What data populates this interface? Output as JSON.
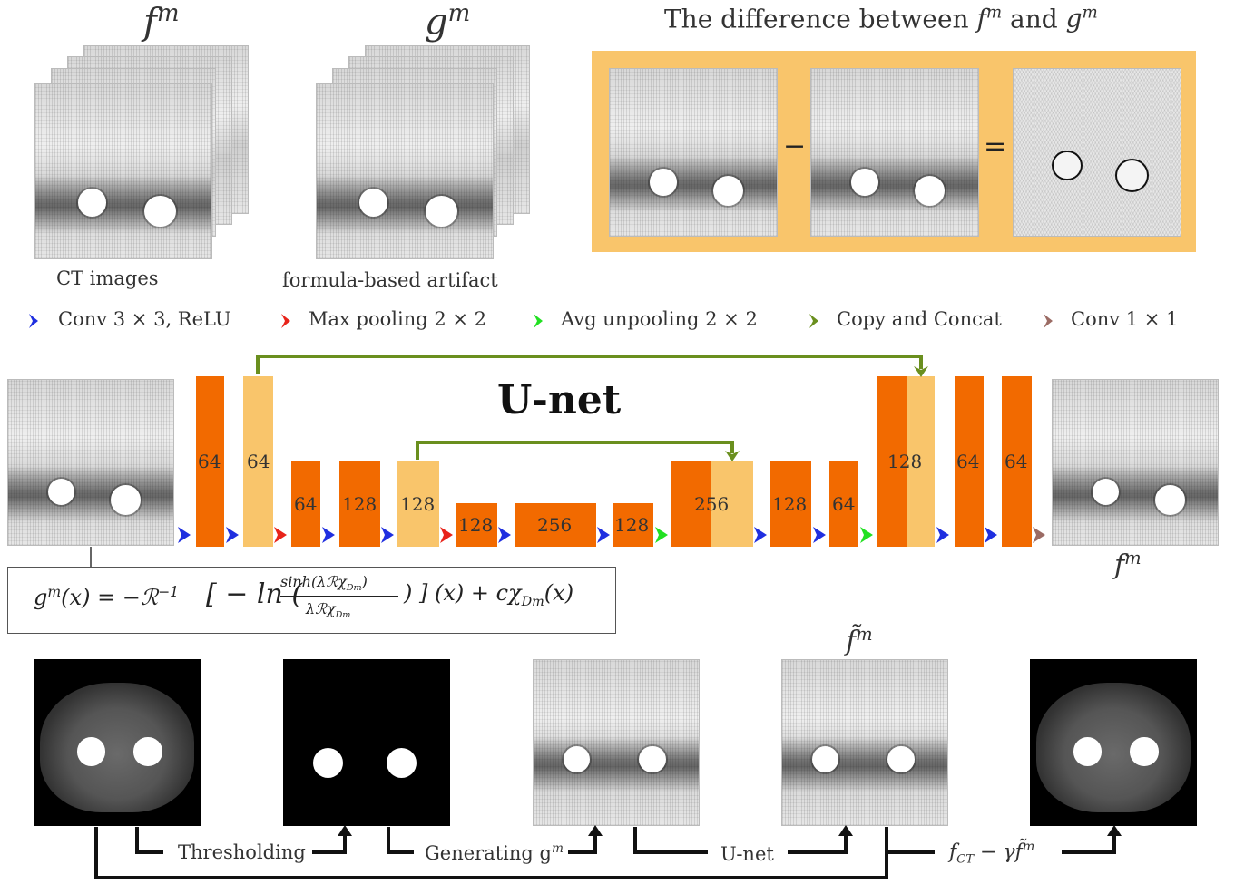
{
  "top": {
    "f_label": "f",
    "f_sup": "m",
    "g_label": "g",
    "g_sup": "m",
    "ct_caption": "CT images",
    "artifact_caption": "formula-based artifact",
    "diff_title_pre": "The difference between",
    "diff_f": "f",
    "diff_f_sup": "m",
    "diff_and": "and",
    "diff_g": "g",
    "diff_g_sup": "m",
    "minus": "−",
    "equals": "="
  },
  "legend": [
    {
      "label": "Conv 3 × 3, ReLU",
      "color": "#1f2fe0"
    },
    {
      "label": "Max pooling 2 × 2",
      "color": "#e8231a"
    },
    {
      "label": "Avg unpooling 2 × 2",
      "color": "#22e022"
    },
    {
      "label": "Copy and Concat",
      "color": "#6a8f1e"
    },
    {
      "label": "Conv 1 × 1",
      "color": "#9b6b64"
    }
  ],
  "unet": {
    "title": "U-net",
    "bars": [
      "64",
      "64",
      "64",
      "128",
      "128",
      "128",
      "256",
      "128",
      "256",
      "128",
      "64",
      "128",
      "64",
      "64"
    ],
    "output_label": "f",
    "output_sup": "m"
  },
  "formula": {
    "text": "g^m(x) = −R^{-1} [ − ln ( sinh(λRχ_{D_m}) / λRχ_{D_m} ) ] (x) + cχ_{D_m}(x)",
    "lhs": "g",
    "lhs_sup": "m",
    "lhs_arg": "(x) = −ℛ",
    "inv": "−1",
    "mid": "[ − ln (",
    "num": "sinh(λℛχ",
    "num_sub": "Dm",
    "num_close": ")",
    "den": "λℛχ",
    "den_sub": "Dm",
    "tail": ") ] (x) + cχ",
    "tail_sub": "Dm",
    "tail_end": "(x)"
  },
  "bottom": {
    "ftilde": "f̃",
    "ftilde_sup": "m",
    "steps": [
      {
        "label": "Thresholding"
      },
      {
        "label": "Generating g",
        "sup": "m"
      },
      {
        "label": "U-net"
      },
      {
        "label": "f",
        "sub": "CT",
        "rest": " − γf̃",
        "sup": "m"
      }
    ]
  },
  "colors": {
    "orange_box": "#f9c56b",
    "bar_dark": "#f26a00",
    "bar_light": "#f9c56b",
    "conv_arrow": "#1f2fe0",
    "pool_arrow": "#e8231a",
    "unpool_arrow": "#22e022",
    "concat_arrow": "#6a8f1e",
    "conv1_arrow": "#9b6b64"
  }
}
